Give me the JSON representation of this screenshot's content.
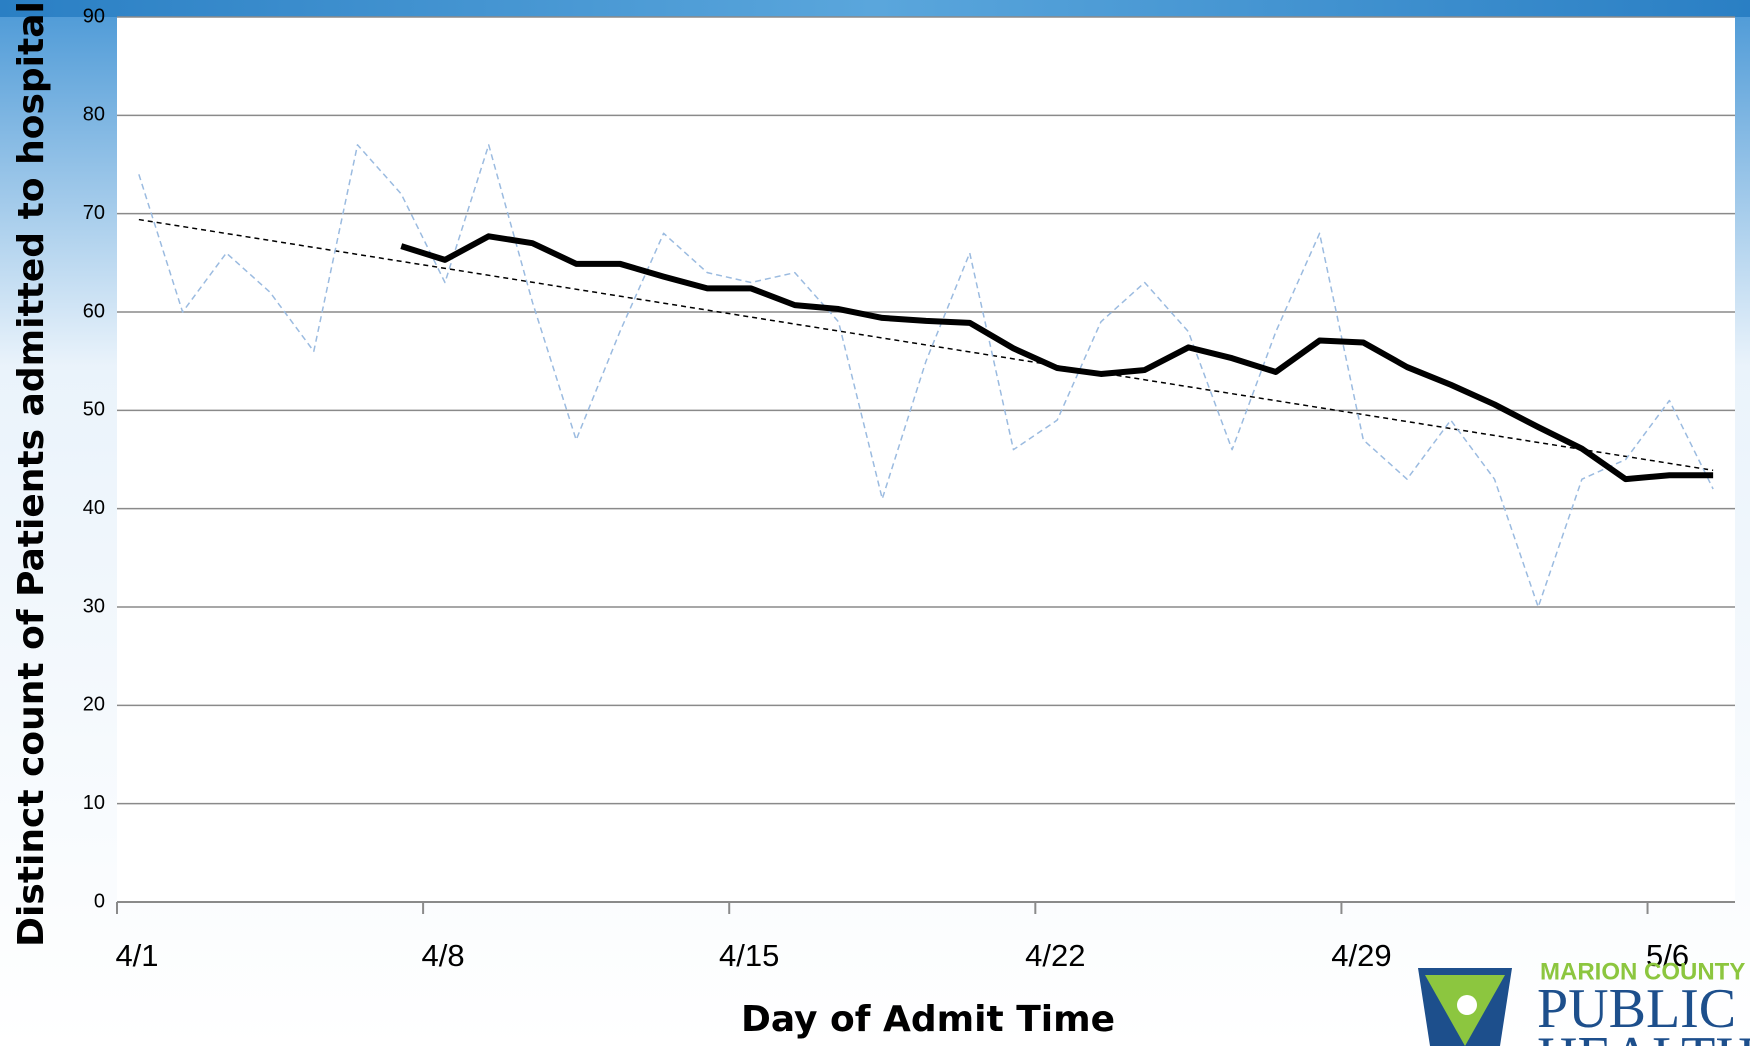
{
  "chart_data": {
    "type": "line",
    "x_label": "Day of Admit Time",
    "y_label": "Distinct count of Patients admitted to hospital",
    "x": [
      0.5,
      1.5,
      2.5,
      3.5,
      4.5,
      5.5,
      6.5,
      7.5,
      8.5,
      9.5,
      10.5,
      11.5,
      12.5,
      13.5,
      14.5,
      15.5,
      16.5,
      17.5,
      18.5,
      19.5,
      20.5,
      21.5,
      22.5,
      23.5,
      24.5,
      25.5,
      26.5,
      27.5,
      28.5,
      29.5,
      30.5,
      31.5,
      32.5,
      33.5,
      34.5,
      35.5,
      36.5
    ],
    "series": [
      {
        "color": "#9bbbe0",
        "dash": true,
        "width": 1.5,
        "values": [
          74,
          60,
          66,
          62,
          56,
          77,
          72,
          63,
          77,
          61,
          47,
          58,
          68,
          64,
          63,
          64,
          59,
          41,
          55,
          66,
          46,
          49,
          59,
          63,
          58,
          46,
          58,
          68,
          47,
          43,
          49,
          43,
          30,
          43,
          45,
          51,
          42
        ]
      },
      {
        "color": "#000000",
        "dash": false,
        "width": 6,
        "values": [
          null,
          null,
          null,
          null,
          null,
          null,
          66.7,
          65.3,
          67.7,
          67.0,
          64.9,
          64.9,
          63.6,
          62.4,
          62.4,
          60.7,
          60.3,
          59.4,
          59.1,
          58.9,
          56.3,
          54.3,
          53.7,
          54.1,
          56.4,
          55.3,
          53.9,
          57.1,
          56.9,
          54.4,
          52.6,
          50.6,
          48.3,
          46.1,
          43.0,
          43.4,
          43.4
        ]
      }
    ],
    "trendline": {
      "color": "#000000",
      "x": [
        0.5,
        36.5
      ],
      "values": [
        69.4,
        43.9
      ]
    },
    "xlim": [
      0,
      37
    ],
    "xticks": [
      {
        "value": 0,
        "label": "4/1"
      },
      {
        "value": 7,
        "label": "4/8"
      },
      {
        "value": 14,
        "label": "4/15"
      },
      {
        "value": 21,
        "label": "4/22"
      },
      {
        "value": 28,
        "label": "4/29"
      },
      {
        "value": 35,
        "label": "5/6"
      }
    ],
    "ylim": [
      0,
      90
    ],
    "yticks": [
      0,
      10,
      20,
      30,
      40,
      50,
      60,
      70,
      80,
      90
    ],
    "grid": true
  },
  "logo": {
    "line1": "MARION COUNTY",
    "line2": "PUBLIC",
    "line3": "HEALTH"
  }
}
